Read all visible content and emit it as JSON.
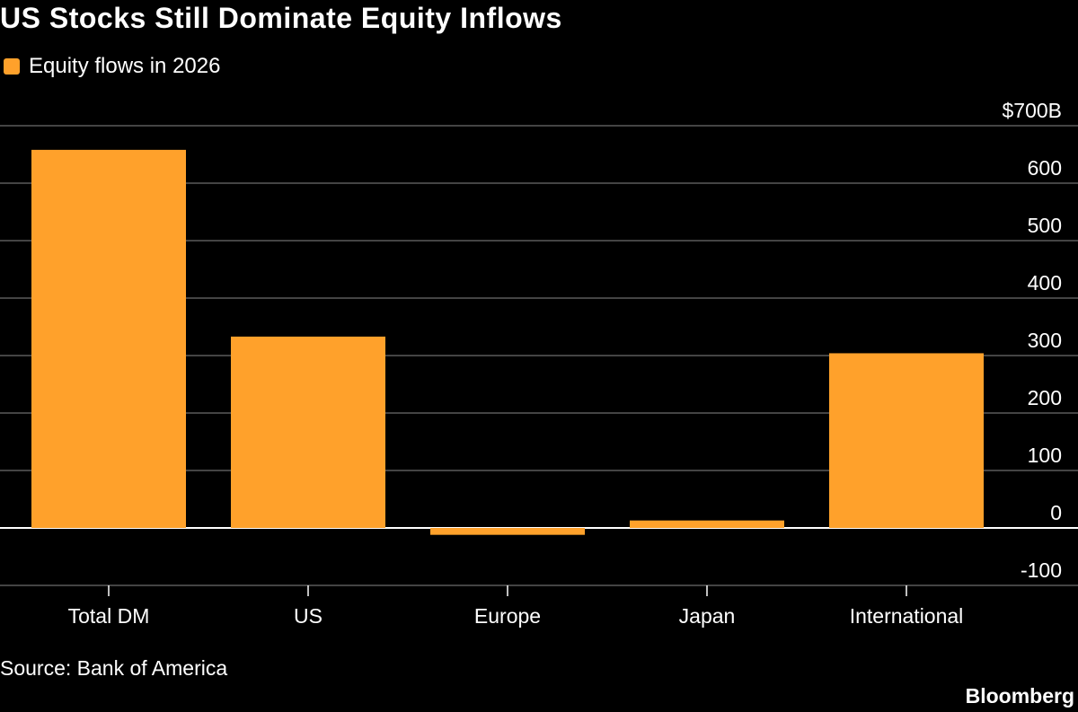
{
  "title": "US Stocks Still Dominate Equity Inflows",
  "legend": {
    "label": "Equity flows in 2026",
    "color": "#ffa12b"
  },
  "source": "Source: Bank of America",
  "brand": "Bloomberg",
  "chart_data": {
    "type": "bar",
    "categories": [
      "Total DM",
      "US",
      "Europe",
      "Japan",
      "International"
    ],
    "series": [
      {
        "name": "Equity flows in 2026",
        "values": [
          658,
          333,
          -12,
          13,
          304
        ]
      }
    ],
    "ylim": [
      -100,
      700
    ],
    "yticks": [
      -100,
      0,
      100,
      200,
      300,
      400,
      500,
      600,
      700
    ],
    "ytick_labels": [
      "-100",
      "0",
      "100",
      "200",
      "300",
      "400",
      "500",
      "600",
      "$700B"
    ],
    "y_axis_side": "right",
    "grid": true,
    "bar_color": "#ffa12b"
  }
}
